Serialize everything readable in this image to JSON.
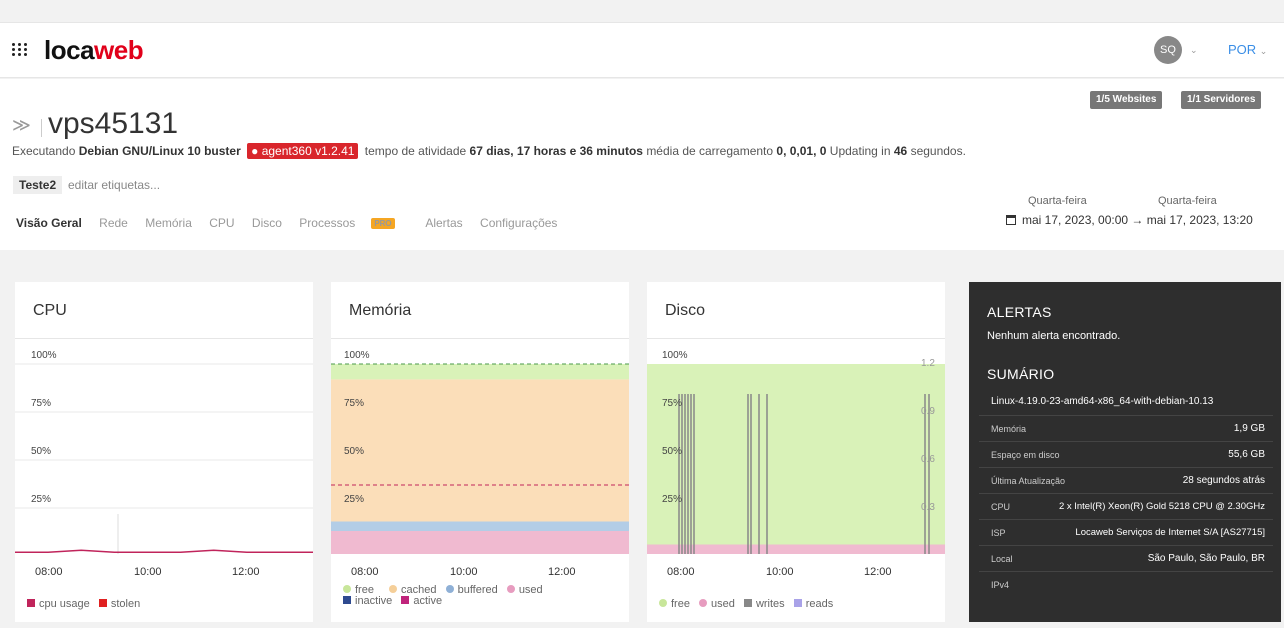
{
  "topbar": {
    "logo_part1": "loca",
    "logo_part2": "web",
    "avatar": "SQ",
    "language": "POR"
  },
  "header": {
    "badges": [
      "1/5 Websites",
      "1/1 Servidores"
    ],
    "hostname": "vps45131",
    "status": {
      "t1": "Executando",
      "os": "Debian GNU/Linux 10 buster",
      "agent": "agent360 v1.2.41",
      "t2": "tempo de atividade",
      "uptime": "67 dias, 17 horas e 36 minutos",
      "t3": "média de carregamento",
      "load": "0, 0,01, 0",
      "t4": "Updating in",
      "countdown": "46",
      "t5": "segundos."
    },
    "tag": "Teste2",
    "edit_tags": "editar etiquetas...",
    "tabs": [
      "Visão Geral",
      "Rede",
      "Memória",
      "CPU",
      "Disco",
      "Processos",
      "Alertas",
      "Configurações"
    ],
    "pro_badge": "PRO",
    "date_from_day": "Quarta-feira",
    "date_to_day": "Quarta-feira",
    "date_range": "mai 17, 2023, 00:00 → mai 17, 2023, 13:20"
  },
  "chart_data": [
    {
      "type": "line",
      "title": "CPU",
      "y_ticks": [
        "100%",
        "75%",
        "50%",
        "25%"
      ],
      "x_ticks": [
        "08:00",
        "10:00",
        "12:00"
      ],
      "ylim": [
        0,
        100
      ],
      "series": [
        {
          "name": "cpu usage",
          "color": "#c0245b",
          "values": [
            2,
            2,
            3,
            2,
            2,
            2,
            3,
            2,
            2,
            2
          ]
        },
        {
          "name": "stolen",
          "color": "#e02020",
          "values": [
            0,
            0,
            0,
            0,
            0,
            0,
            0,
            0,
            0,
            0
          ]
        }
      ]
    },
    {
      "type": "area",
      "title": "Memória",
      "y_ticks": [
        "100%",
        "75%",
        "50%",
        "25%"
      ],
      "x_ticks": [
        "08:00",
        "10:00",
        "12:00"
      ],
      "ylim": [
        0,
        100
      ],
      "series": [
        {
          "name": "free",
          "color": "#d9f2b8",
          "values": [
            8
          ]
        },
        {
          "name": "cached",
          "color": "#fbdeb9",
          "values": [
            74
          ]
        },
        {
          "name": "buffered",
          "color": "#b3cde6",
          "values": [
            5
          ]
        },
        {
          "name": "used",
          "color": "#f0bad0",
          "values": [
            13
          ]
        },
        {
          "name": "inactive",
          "color": "#2e4a8f",
          "values": []
        },
        {
          "name": "active",
          "color": "#c0247c",
          "values": []
        }
      ],
      "reference_lines": [
        {
          "value": 100,
          "color": "#4a9a4a"
        },
        {
          "value": 37,
          "color": "#c0245b"
        }
      ]
    },
    {
      "type": "area",
      "title": "Disco",
      "y_ticks": [
        "100%",
        "75%",
        "50%",
        "25%"
      ],
      "y2_ticks": [
        "1.2",
        "0.9",
        "0.6",
        "0.3"
      ],
      "x_ticks": [
        "08:00",
        "10:00",
        "12:00"
      ],
      "ylim": [
        0,
        100
      ],
      "series": [
        {
          "name": "free",
          "color": "#d9f2b8",
          "values": [
            94
          ]
        },
        {
          "name": "used",
          "color": "#f0bad0",
          "values": [
            6
          ]
        },
        {
          "name": "writes",
          "color": "#888888",
          "values": []
        },
        {
          "name": "reads",
          "color": "#a9a2e8",
          "values": []
        }
      ]
    }
  ],
  "sidebar": {
    "alerts_title": "ALERTAS",
    "no_alerts": "Nenhum alerta encontrado.",
    "summary_title": "SUMÁRIO",
    "kernel": "Linux-4.19.0-23-amd64-x86_64-with-debian-10.13",
    "rows": [
      {
        "k": "Memória",
        "v": "1,9 GB"
      },
      {
        "k": "Espaço em disco",
        "v": "55,6 GB"
      },
      {
        "k": "Última Atualização",
        "v": "28 segundos atrás"
      },
      {
        "k": "CPU",
        "v": "2 x Intel(R) Xeon(R) Gold 5218 CPU @ 2.30GHz"
      },
      {
        "k": "ISP",
        "v": "Locaweb Serviços de Internet S/A [AS27715]"
      },
      {
        "k": "Local",
        "v": "São Paulo, São Paulo, BR"
      },
      {
        "k": "IPv4",
        "v": ""
      }
    ]
  }
}
